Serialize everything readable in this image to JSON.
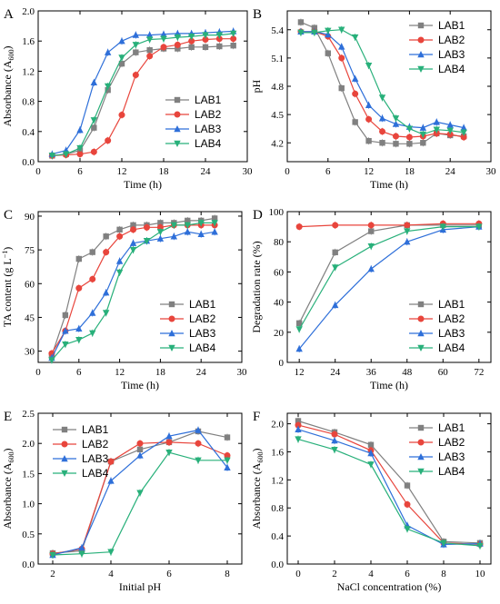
{
  "figure": {
    "panels_meta": [
      {
        "letter": "A"
      },
      {
        "letter": "B"
      },
      {
        "letter": "C"
      },
      {
        "letter": "D"
      },
      {
        "letter": "E"
      },
      {
        "letter": "F"
      }
    ]
  },
  "series_colors": {
    "LAB1": "#808080",
    "LAB2": "#e8453c",
    "LAB3": "#2e6fd9",
    "LAB4": "#28b07a"
  },
  "chart_data": [
    {
      "panel": "A",
      "type": "line",
      "xlabel": "Time (h)",
      "ylabel": "Absorbance (A600)",
      "xlim": [
        0,
        30
      ],
      "ylim": [
        0,
        2.0
      ],
      "xticks": [
        0,
        6,
        12,
        18,
        24,
        30
      ],
      "yticks": [
        0.0,
        0.4,
        0.8,
        1.2,
        1.6,
        2.0
      ],
      "xtick_labels": [
        "0",
        "6",
        "12",
        "18",
        "24",
        "30"
      ],
      "ytick_labels": [
        "0.0",
        "0.4",
        "0.8",
        "1.2",
        "1.6",
        "2.0"
      ],
      "legend_position": "center-right",
      "series": [
        {
          "name": "LAB1",
          "marker": "square",
          "x": [
            2,
            4,
            6,
            8,
            10,
            12,
            14,
            16,
            18,
            20,
            22,
            24,
            26,
            28
          ],
          "y": [
            0.08,
            0.1,
            0.15,
            0.45,
            0.95,
            1.3,
            1.45,
            1.48,
            1.5,
            1.5,
            1.52,
            1.52,
            1.53,
            1.54
          ]
        },
        {
          "name": "LAB2",
          "marker": "circle",
          "x": [
            2,
            4,
            6,
            8,
            10,
            12,
            14,
            16,
            18,
            20,
            22,
            24,
            26,
            28
          ],
          "y": [
            0.08,
            0.09,
            0.1,
            0.13,
            0.28,
            0.62,
            1.15,
            1.4,
            1.52,
            1.55,
            1.6,
            1.62,
            1.63,
            1.63
          ]
        },
        {
          "name": "LAB3",
          "marker": "triangle-up",
          "x": [
            2,
            4,
            6,
            8,
            10,
            12,
            14,
            16,
            18,
            20,
            22,
            24,
            26,
            28
          ],
          "y": [
            0.1,
            0.15,
            0.42,
            1.05,
            1.45,
            1.6,
            1.68,
            1.68,
            1.69,
            1.7,
            1.7,
            1.71,
            1.72,
            1.73
          ]
        },
        {
          "name": "LAB4",
          "marker": "triangle-down",
          "x": [
            2,
            4,
            6,
            8,
            10,
            12,
            14,
            16,
            18,
            20,
            22,
            24,
            26,
            28
          ],
          "y": [
            0.08,
            0.1,
            0.18,
            0.55,
            1.0,
            1.38,
            1.55,
            1.62,
            1.63,
            1.65,
            1.66,
            1.68,
            1.68,
            1.7
          ]
        }
      ]
    },
    {
      "panel": "B",
      "type": "line",
      "xlabel": "Time (h)",
      "ylabel": "pH",
      "xlim": [
        0,
        30
      ],
      "ylim": [
        4.0,
        5.6
      ],
      "xticks": [
        0,
        6,
        12,
        18,
        24,
        30
      ],
      "yticks": [
        4.2,
        4.5,
        4.8,
        5.1,
        5.4
      ],
      "xtick_labels": [
        "0",
        "6",
        "12",
        "18",
        "24",
        "30"
      ],
      "ytick_labels": [
        "4.2",
        "4.5",
        "4.8",
        "5.1",
        "5.4"
      ],
      "legend_position": "top-right",
      "series": [
        {
          "name": "LAB1",
          "marker": "square",
          "x": [
            2,
            4,
            6,
            8,
            10,
            12,
            14,
            16,
            18,
            20,
            22,
            24,
            26
          ],
          "y": [
            5.48,
            5.42,
            5.15,
            4.78,
            4.42,
            4.22,
            4.2,
            4.19,
            4.19,
            4.2,
            4.3,
            4.28,
            4.27
          ]
        },
        {
          "name": "LAB2",
          "marker": "circle",
          "x": [
            2,
            4,
            6,
            8,
            10,
            12,
            14,
            16,
            18,
            20,
            22,
            24,
            26
          ],
          "y": [
            5.38,
            5.38,
            5.33,
            5.1,
            4.72,
            4.45,
            4.32,
            4.27,
            4.26,
            4.27,
            4.3,
            4.29,
            4.26
          ]
        },
        {
          "name": "LAB3",
          "marker": "triangle-up",
          "x": [
            2,
            4,
            6,
            8,
            10,
            12,
            14,
            16,
            18,
            20,
            22,
            24,
            26
          ],
          "y": [
            5.38,
            5.38,
            5.35,
            5.22,
            4.88,
            4.6,
            4.46,
            4.4,
            4.37,
            4.36,
            4.42,
            4.39,
            4.36
          ]
        },
        {
          "name": "LAB4",
          "marker": "triangle-down",
          "x": [
            2,
            4,
            6,
            8,
            10,
            12,
            14,
            16,
            18,
            20,
            22,
            24,
            26
          ],
          "y": [
            5.37,
            5.37,
            5.39,
            5.4,
            5.32,
            5.02,
            4.68,
            4.46,
            4.35,
            4.29,
            4.34,
            4.33,
            4.31
          ]
        }
      ]
    },
    {
      "panel": "C",
      "type": "line",
      "xlabel": "Time (h)",
      "ylabel": "TA content (g L−1)",
      "xlim": [
        0,
        30
      ],
      "ylim": [
        25,
        92
      ],
      "xticks": [
        0,
        6,
        12,
        18,
        24,
        30
      ],
      "yticks": [
        30,
        45,
        60,
        75,
        90
      ],
      "xtick_labels": [
        "0",
        "6",
        "12",
        "18",
        "24",
        "30"
      ],
      "ytick_labels": [
        "30",
        "45",
        "60",
        "75",
        "90"
      ],
      "legend_position": "bottom-right",
      "series": [
        {
          "name": "LAB1",
          "marker": "square",
          "x": [
            2,
            4,
            6,
            8,
            10,
            12,
            14,
            16,
            18,
            20,
            22,
            24,
            26
          ],
          "y": [
            28,
            46,
            71,
            74,
            81,
            84,
            86,
            86,
            87,
            87,
            88,
            88,
            89
          ]
        },
        {
          "name": "LAB2",
          "marker": "circle",
          "x": [
            2,
            4,
            6,
            8,
            10,
            12,
            14,
            16,
            18,
            20,
            22,
            24,
            26
          ],
          "y": [
            29,
            39,
            58,
            62,
            74,
            81,
            84,
            85,
            85,
            86,
            86,
            86,
            86
          ]
        },
        {
          "name": "LAB3",
          "marker": "triangle-up",
          "x": [
            2,
            4,
            6,
            8,
            10,
            12,
            14,
            16,
            18,
            20,
            22,
            24,
            26
          ],
          "y": [
            27,
            39,
            40,
            47,
            56,
            70,
            78,
            79,
            80,
            81,
            83,
            82,
            83
          ]
        },
        {
          "name": "LAB4",
          "marker": "triangle-down",
          "x": [
            2,
            4,
            6,
            8,
            10,
            12,
            14,
            16,
            18,
            20,
            22,
            24,
            26
          ],
          "y": [
            26,
            33,
            35,
            38,
            47,
            65,
            75,
            79,
            83,
            86,
            86,
            87,
            87
          ]
        }
      ]
    },
    {
      "panel": "D",
      "type": "line",
      "xlabel": "Time (h)",
      "ylabel": "Degradation rate (%)",
      "xlim": [
        8,
        76
      ],
      "ylim": [
        0,
        100
      ],
      "xticks": [
        12,
        24,
        36,
        48,
        60,
        72
      ],
      "yticks": [
        0,
        20,
        40,
        60,
        80,
        100
      ],
      "xtick_labels": [
        "12",
        "24",
        "36",
        "48",
        "60",
        "72"
      ],
      "ytick_labels": [
        "0",
        "20",
        "40",
        "60",
        "80",
        "100"
      ],
      "legend_position": "bottom-right",
      "series": [
        {
          "name": "LAB1",
          "marker": "square",
          "x": [
            12,
            24,
            36,
            48,
            60,
            72
          ],
          "y": [
            26,
            73,
            87,
            91,
            91,
            91
          ]
        },
        {
          "name": "LAB2",
          "marker": "circle",
          "x": [
            12,
            24,
            36,
            48,
            60,
            72
          ],
          "y": [
            90,
            91,
            91,
            91,
            92,
            92
          ]
        },
        {
          "name": "LAB3",
          "marker": "triangle-up",
          "x": [
            12,
            24,
            36,
            48,
            60,
            72
          ],
          "y": [
            9,
            38,
            62,
            80,
            88,
            90
          ]
        },
        {
          "name": "LAB4",
          "marker": "triangle-down",
          "x": [
            12,
            24,
            36,
            48,
            60,
            72
          ],
          "y": [
            22,
            63,
            77,
            87,
            90,
            90
          ]
        }
      ]
    },
    {
      "panel": "E",
      "type": "line",
      "xlabel": "Initial pH",
      "ylabel": "Absorbance (A600)",
      "xlim": [
        1.5,
        8.5
      ],
      "ylim": [
        0,
        2.5
      ],
      "xticks": [
        2,
        4,
        6,
        8
      ],
      "yticks": [
        0.0,
        0.5,
        1.0,
        1.5,
        2.0,
        2.5
      ],
      "xtick_labels": [
        "2",
        "4",
        "6",
        "8"
      ],
      "ytick_labels": [
        "0.0",
        "0.5",
        "1.0",
        "1.5",
        "2.0",
        "2.5"
      ],
      "legend_position": "top-left",
      "series": [
        {
          "name": "LAB1",
          "marker": "square",
          "x": [
            2,
            3,
            4,
            5,
            6,
            7,
            8
          ],
          "y": [
            0.18,
            0.22,
            1.7,
            1.9,
            2.02,
            2.2,
            2.1
          ]
        },
        {
          "name": "LAB2",
          "marker": "circle",
          "x": [
            2,
            3,
            4,
            5,
            6,
            7,
            8
          ],
          "y": [
            0.17,
            0.25,
            1.7,
            2.0,
            2.02,
            2.0,
            1.8
          ]
        },
        {
          "name": "LAB3",
          "marker": "triangle-up",
          "x": [
            2,
            3,
            4,
            5,
            6,
            7,
            8
          ],
          "y": [
            0.15,
            0.27,
            1.38,
            1.8,
            2.12,
            2.22,
            1.6
          ]
        },
        {
          "name": "LAB4",
          "marker": "triangle-down",
          "x": [
            2,
            3,
            4,
            5,
            6,
            7,
            8
          ],
          "y": [
            0.15,
            0.17,
            0.2,
            1.18,
            1.85,
            1.72,
            1.72
          ]
        }
      ]
    },
    {
      "panel": "F",
      "type": "line",
      "xlabel": "NaCl concentration (%)",
      "ylabel": "Absorbance (A600)",
      "xlim": [
        -0.6,
        10.6
      ],
      "ylim": [
        0,
        2.15
      ],
      "xticks": [
        0,
        2,
        4,
        6,
        8,
        10
      ],
      "yticks": [
        0.0,
        0.4,
        0.8,
        1.2,
        1.6,
        2.0
      ],
      "xtick_labels": [
        "0",
        "2",
        "4",
        "6",
        "8",
        "10"
      ],
      "ytick_labels": [
        "0.0",
        "0.4",
        "0.8",
        "1.2",
        "1.6",
        "2.0"
      ],
      "legend_position": "top-right",
      "series": [
        {
          "name": "LAB1",
          "marker": "square",
          "x": [
            0,
            2,
            4,
            6,
            8,
            10
          ],
          "y": [
            2.04,
            1.88,
            1.7,
            1.12,
            0.32,
            0.3
          ]
        },
        {
          "name": "LAB2",
          "marker": "circle",
          "x": [
            0,
            2,
            4,
            6,
            8,
            10
          ],
          "y": [
            1.98,
            1.85,
            1.62,
            0.85,
            0.3,
            0.28
          ]
        },
        {
          "name": "LAB3",
          "marker": "triangle-up",
          "x": [
            0,
            2,
            4,
            6,
            8,
            10
          ],
          "y": [
            1.92,
            1.76,
            1.58,
            0.55,
            0.28,
            0.29
          ]
        },
        {
          "name": "LAB4",
          "marker": "triangle-down",
          "x": [
            0,
            2,
            4,
            6,
            8,
            10
          ],
          "y": [
            1.78,
            1.63,
            1.42,
            0.5,
            0.3,
            0.26
          ]
        }
      ]
    }
  ]
}
